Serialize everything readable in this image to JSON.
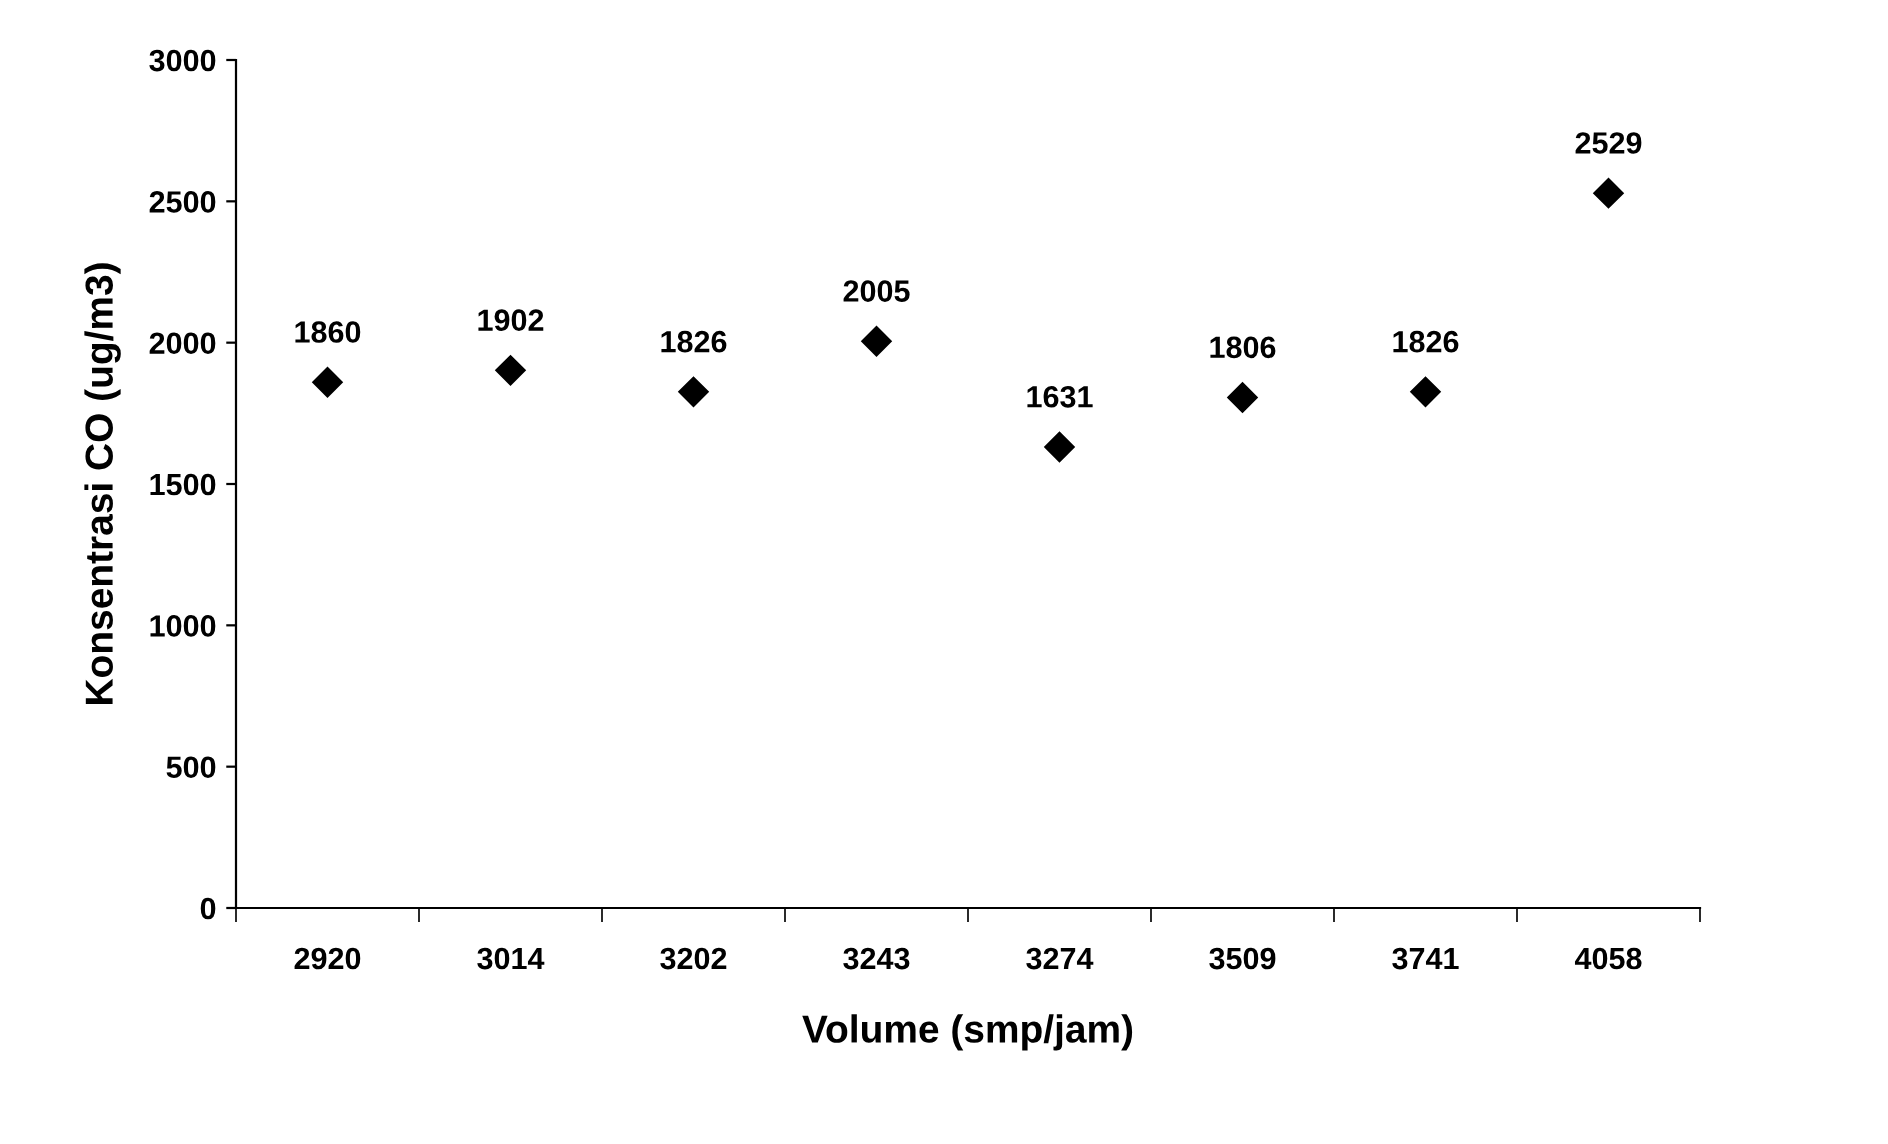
{
  "chart_data": {
    "type": "scatter",
    "xlabel": "Volume (smp/jam)",
    "ylabel": "Konsentrasi CO (ug/m3)",
    "categories": [
      "2920",
      "3014",
      "3202",
      "3243",
      "3274",
      "3509",
      "3741",
      "4058"
    ],
    "values": [
      1860,
      1902,
      1826,
      2005,
      1631,
      1806,
      1826,
      2529
    ],
    "color": "#000000",
    "marker": "diamond",
    "data_labels": true,
    "ylim": [
      0,
      3000
    ],
    "yticks": [
      0,
      500,
      1000,
      1500,
      2000,
      2500,
      3000
    ],
    "grid": false,
    "legend": false
  }
}
